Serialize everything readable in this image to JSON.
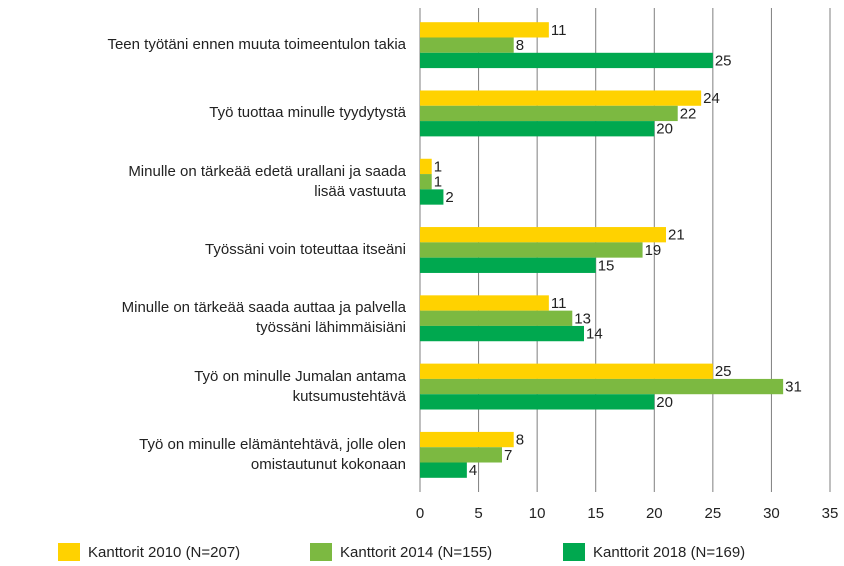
{
  "chart_data": {
    "type": "bar",
    "orientation": "horizontal",
    "categories": [
      "Teen työtäni ennen muuta toimeentulon takia",
      "Työ tuottaa minulle tyydytystä",
      "Minulle on tärkeää edetä urallani ja saada\nlisää vastuuta",
      "Työssäni voin toteuttaa itseäni",
      "Minulle on tärkeää saada auttaa ja palvella\ntyössäni lähimmäisiäni",
      "Työ on minulle Jumalan antama\nkutsumustehtävä",
      "Työ on minulle elämäntehtävä, jolle olen\nomistautunut kokonaan"
    ],
    "series": [
      {
        "name": "Kanttorit 2010 (N=207)",
        "color": "#ffd200",
        "values": [
          11,
          24,
          1,
          21,
          11,
          25,
          8
        ]
      },
      {
        "name": "Kanttorit 2014 (N=155)",
        "color": "#7cb941",
        "values": [
          8,
          22,
          1,
          19,
          13,
          31,
          7
        ]
      },
      {
        "name": "Kanttorit 2018 (N=169)",
        "color": "#00a84f",
        "values": [
          25,
          20,
          2,
          15,
          14,
          20,
          4
        ]
      }
    ],
    "xlim": [
      0,
      35
    ],
    "xticks": [
      0,
      5,
      10,
      15,
      20,
      25,
      30,
      35
    ],
    "grid": true,
    "legend": "bottom"
  }
}
